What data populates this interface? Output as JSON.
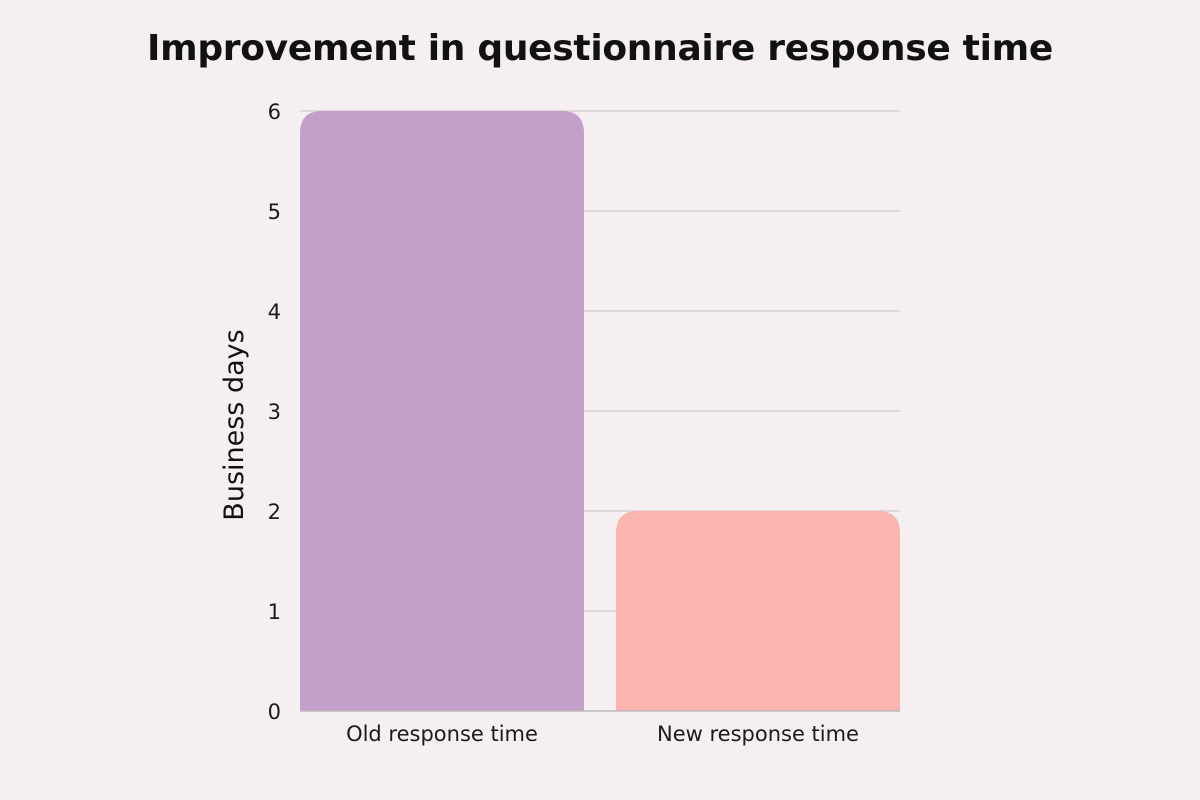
{
  "chart_data": {
    "type": "bar",
    "title": "Improvement in questionnaire response time",
    "xlabel": "",
    "ylabel": "Business days",
    "categories": [
      "Old response time",
      "New response time"
    ],
    "values": [
      6,
      2
    ],
    "ylim": [
      0,
      6
    ],
    "yticks": [
      0,
      1,
      2,
      3,
      4,
      5,
      6
    ],
    "grid": true,
    "colors": [
      "#c3a0ca",
      "#f9b5ae"
    ],
    "grid_color": "#d6d0d3",
    "background": "#f5eff1"
  }
}
